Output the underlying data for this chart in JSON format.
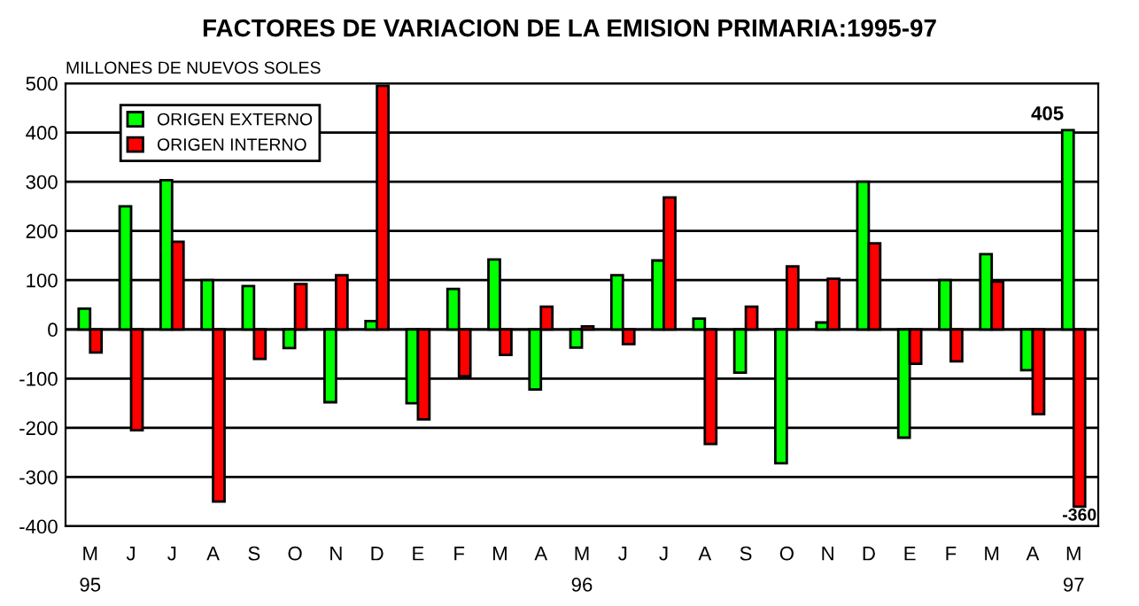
{
  "chart_data": {
    "type": "bar",
    "title": "FACTORES DE VARIACION DE LA EMISION PRIMARIA:1995-97",
    "ylabel": "MILLONES DE NUEVOS SOLES",
    "categories": [
      "M\n95",
      "J",
      "J",
      "A",
      "S",
      "O",
      "N",
      "D",
      "E",
      "F",
      "M",
      "A",
      "M\n96",
      "J",
      "J",
      "A",
      "S",
      "O",
      "N",
      "D",
      "E",
      "F",
      "M",
      "A",
      "M\n97"
    ],
    "series": [
      {
        "name": "ORIGEN EXTERNO",
        "color": "#00ff00",
        "values": [
          42,
          250,
          303,
          100,
          88,
          -38,
          -148,
          17,
          -150,
          82,
          142,
          -122,
          -37,
          110,
          140,
          22,
          -88,
          -272,
          14,
          300,
          -220,
          100,
          153,
          -83,
          405
        ],
        "value_labels": [
          null,
          null,
          null,
          null,
          null,
          null,
          null,
          null,
          null,
          null,
          null,
          null,
          null,
          null,
          null,
          null,
          null,
          null,
          null,
          null,
          null,
          null,
          null,
          null,
          "405"
        ]
      },
      {
        "name": "ORIGEN INTERNO",
        "color": "#ff0000",
        "values": [
          -47,
          -205,
          178,
          -350,
          -60,
          92,
          110,
          495,
          -183,
          -95,
          -52,
          46,
          6,
          -30,
          268,
          -233,
          46,
          128,
          103,
          175,
          -70,
          -65,
          97,
          -172,
          -360
        ],
        "value_labels": [
          null,
          null,
          null,
          null,
          null,
          null,
          null,
          null,
          null,
          null,
          null,
          null,
          null,
          null,
          null,
          null,
          null,
          null,
          null,
          null,
          null,
          null,
          null,
          null,
          "-360"
        ]
      }
    ],
    "ylim": [
      -400,
      500
    ],
    "yticks": [
      -400,
      -300,
      -200,
      -100,
      0,
      100,
      200,
      300,
      400,
      500
    ],
    "grid": "y",
    "legend": "top left"
  }
}
